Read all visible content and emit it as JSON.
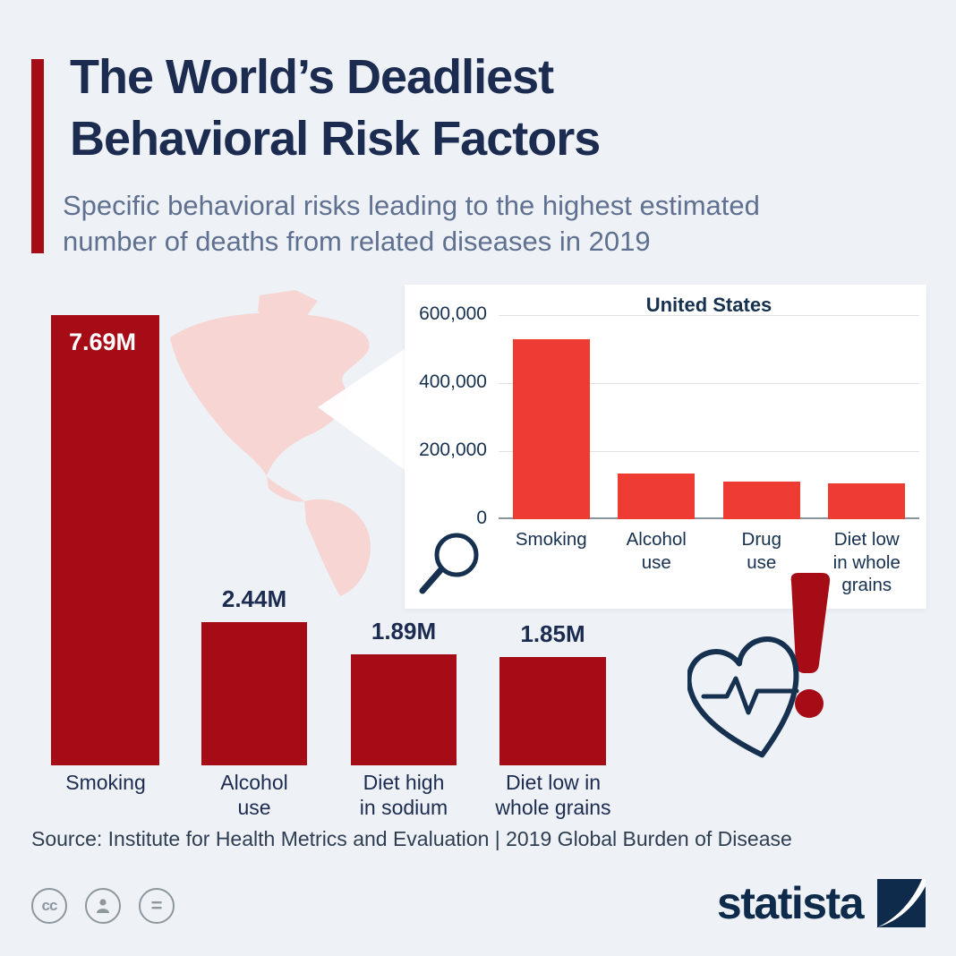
{
  "colors": {
    "background": "#eef2f6",
    "world_bar_red": "#a60c16",
    "us_bar_red": "#ee3b33",
    "navy": "#1c2b50",
    "subtitle_gray": "#5f7090",
    "map_pink": "#f6d5d3"
  },
  "header": {
    "title": "The World’s Deadliest\nBehavioral Risk Factors",
    "subtitle": "Specific behavioral risks leading to the highest estimated\nnumber of deaths from related diseases in 2019"
  },
  "chart_data": [
    {
      "type": "bar",
      "scope": "World",
      "title": "",
      "categories": [
        "Smoking",
        "Alcohol use",
        "Diet high in sodium",
        "Diet low in whole grains"
      ],
      "values": [
        7.69,
        2.44,
        1.89,
        1.85
      ],
      "unit": "millions of deaths",
      "value_labels": [
        "7.69M",
        "2.44M",
        "1.89M",
        "1.85M"
      ],
      "tick_labels": [
        "Smoking",
        "Alcohol\nuse",
        "Diet high\nin sodium",
        "Diet low in\nwhole grains"
      ],
      "bar_color": "#a60c16",
      "grid": false
    },
    {
      "type": "bar",
      "scope": "United States",
      "title": "United States",
      "categories": [
        "Smoking",
        "Alcohol use",
        "Drug use",
        "Diet low in whole grains"
      ],
      "values": [
        530000,
        135000,
        110000,
        105000
      ],
      "ylim": [
        0,
        600000
      ],
      "ytick_labels": [
        "600,000",
        "400,000",
        "200,000",
        "0"
      ],
      "tick_labels": [
        "Smoking",
        "Alcohol\nuse",
        "Drug\nuse",
        "Diet low\nin whole\ngrains"
      ],
      "bar_color": "#ee3b33",
      "grid": true
    }
  ],
  "source": "Source: Institute for Health Metrics and Evaluation  |  2019 Global Burden of Disease",
  "footer": {
    "badges": {
      "cc": "cc",
      "equals": "="
    },
    "brand": "statista"
  },
  "icons": {
    "magnifier": "magnifier-icon",
    "heart_pulse": "heart-pulse-icon",
    "exclamation": "exclamation-icon",
    "cc": "cc-icon",
    "attribution": "attribution-person-icon",
    "equals": "equals-icon",
    "logo": "statista-logo-icon"
  }
}
